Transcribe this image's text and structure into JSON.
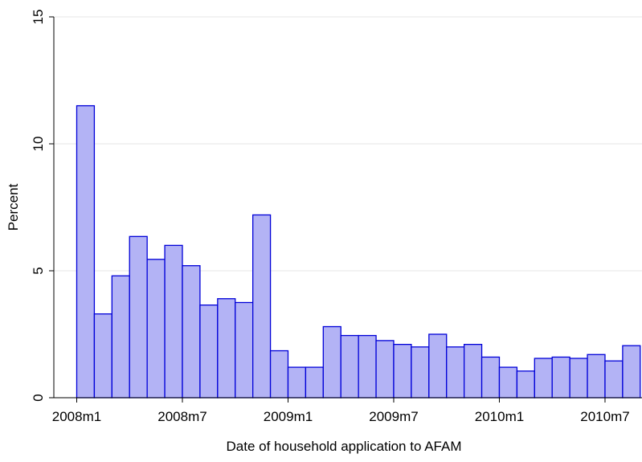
{
  "chart_data": {
    "type": "histogram",
    "xlabel": "Date of household application to AFAM",
    "ylabel": "Percent",
    "bins": [
      576,
      577,
      578,
      579,
      580,
      581,
      582,
      583,
      584,
      585,
      586,
      587,
      588,
      589,
      590,
      591,
      592,
      593,
      594,
      595,
      596,
      597,
      598,
      599,
      600,
      601,
      602,
      603,
      604,
      605,
      606,
      607,
      608
    ],
    "values": [
      11.5,
      3.3,
      4.8,
      6.35,
      5.45,
      6.0,
      5.2,
      3.65,
      3.9,
      3.75,
      7.2,
      1.85,
      1.2,
      1.2,
      2.8,
      2.45,
      2.45,
      2.25,
      2.1,
      2.0,
      2.5,
      2.0,
      2.1,
      1.6,
      1.2,
      1.05,
      1.55,
      1.6,
      1.55,
      1.7,
      1.45,
      2.05
    ],
    "color": "#b3b3f5",
    "edgecolor": "#0000d8",
    "xlim": [
      574.7,
      608.1
    ],
    "xticks": [
      {
        "value": 576,
        "label": "2008m1"
      },
      {
        "value": 582,
        "label": "2008m7"
      },
      {
        "value": 588,
        "label": "2009m1"
      },
      {
        "value": 594,
        "label": "2009m7"
      },
      {
        "value": 600,
        "label": "2010m1"
      },
      {
        "value": 606,
        "label": "2010m7"
      }
    ],
    "ylim": [
      0,
      15
    ],
    "yticks": [
      0,
      5,
      10,
      15
    ],
    "grid": true
  }
}
